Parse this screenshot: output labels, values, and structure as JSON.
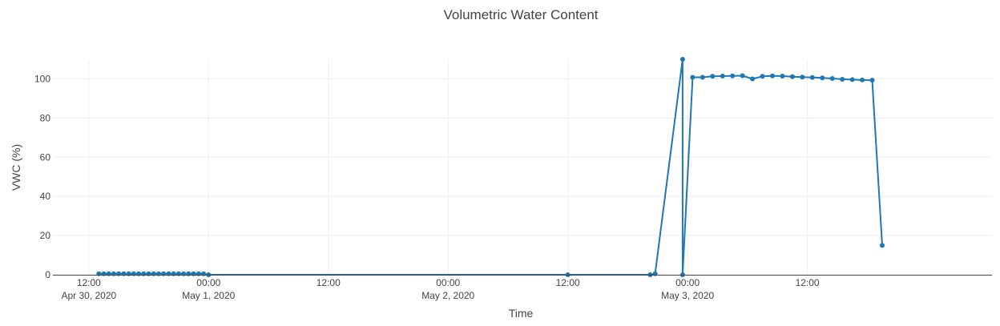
{
  "chart_data": {
    "type": "line",
    "title": "Volumetric Water Content",
    "xlabel": "Time",
    "ylabel": "VWC (%)",
    "xlim": [
      "2020-04-30 08:24",
      "2020-05-04 06:30"
    ],
    "ylim": [
      0,
      110
    ],
    "y_ticks": [
      0,
      20,
      40,
      60,
      80,
      100
    ],
    "x_ticks": [
      {
        "t": "2020-04-30 12:00",
        "line1": "12:00",
        "line2": "Apr 30, 2020"
      },
      {
        "t": "2020-05-01 00:00",
        "line1": "00:00",
        "line2": "May 1, 2020"
      },
      {
        "t": "2020-05-01 12:00",
        "line1": "12:00",
        "line2": ""
      },
      {
        "t": "2020-05-02 00:00",
        "line1": "00:00",
        "line2": "May 2, 2020"
      },
      {
        "t": "2020-05-02 12:00",
        "line1": "12:00",
        "line2": ""
      },
      {
        "t": "2020-05-03 00:00",
        "line1": "00:00",
        "line2": "May 3, 2020"
      },
      {
        "t": "2020-05-03 12:00",
        "line1": "12:00",
        "line2": ""
      }
    ],
    "grid": true,
    "color": "#1f77b4",
    "series": [
      {
        "name": "",
        "points": [
          [
            "2020-04-30 13:00",
            0.5
          ],
          [
            "2020-04-30 13:30",
            0.5
          ],
          [
            "2020-04-30 14:00",
            0.5
          ],
          [
            "2020-04-30 14:30",
            0.5
          ],
          [
            "2020-04-30 15:00",
            0.5
          ],
          [
            "2020-04-30 15:30",
            0.5
          ],
          [
            "2020-04-30 16:00",
            0.5
          ],
          [
            "2020-04-30 16:30",
            0.5
          ],
          [
            "2020-04-30 17:00",
            0.5
          ],
          [
            "2020-04-30 17:30",
            0.5
          ],
          [
            "2020-04-30 18:00",
            0.5
          ],
          [
            "2020-04-30 18:30",
            0.5
          ],
          [
            "2020-04-30 19:00",
            0.5
          ],
          [
            "2020-04-30 19:30",
            0.5
          ],
          [
            "2020-04-30 20:00",
            0.5
          ],
          [
            "2020-04-30 20:30",
            0.5
          ],
          [
            "2020-04-30 21:00",
            0.5
          ],
          [
            "2020-04-30 21:30",
            0.5
          ],
          [
            "2020-04-30 22:00",
            0.5
          ],
          [
            "2020-04-30 22:30",
            0.5
          ],
          [
            "2020-04-30 23:00",
            0.5
          ],
          [
            "2020-04-30 23:30",
            0.5
          ],
          [
            "2020-05-01 00:00",
            0
          ],
          [
            "2020-05-02 12:00",
            0
          ],
          [
            "2020-05-02 20:15",
            0
          ],
          [
            "2020-05-02 20:45",
            0.5
          ],
          [
            "2020-05-02 23:30",
            110
          ],
          [
            "2020-05-02 23:30",
            0
          ],
          [
            "2020-05-03 00:30",
            100.8
          ],
          [
            "2020-05-03 01:30",
            100.8
          ],
          [
            "2020-05-03 02:30",
            101.3
          ],
          [
            "2020-05-03 03:30",
            101.4
          ],
          [
            "2020-05-03 04:30",
            101.5
          ],
          [
            "2020-05-03 05:30",
            101.6
          ],
          [
            "2020-05-03 06:30",
            100.0
          ],
          [
            "2020-05-03 07:30",
            101.3
          ],
          [
            "2020-05-03 08:30",
            101.5
          ],
          [
            "2020-05-03 09:30",
            101.4
          ],
          [
            "2020-05-03 10:30",
            101.1
          ],
          [
            "2020-05-03 11:30",
            100.9
          ],
          [
            "2020-05-03 12:30",
            100.7
          ],
          [
            "2020-05-03 13:30",
            100.5
          ],
          [
            "2020-05-03 14:30",
            100.2
          ],
          [
            "2020-05-03 15:30",
            99.8
          ],
          [
            "2020-05-03 16:30",
            99.6
          ],
          [
            "2020-05-03 17:30",
            99.4
          ],
          [
            "2020-05-03 18:30",
            99.3
          ],
          [
            "2020-05-03 19:30",
            15
          ]
        ]
      }
    ]
  }
}
